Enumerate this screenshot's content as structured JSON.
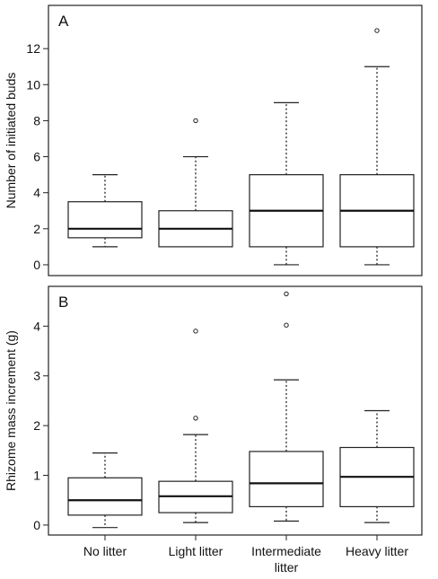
{
  "chart_data": [
    {
      "type": "box",
      "panel_label": "A",
      "ylabel": "Number of initiated buds",
      "ylim": [
        -0.6,
        14.4
      ],
      "yticks": [
        0,
        2,
        4,
        6,
        8,
        10,
        12
      ],
      "categories": [
        "No litter",
        "Light litter",
        "Intermediate litter",
        "Heavy litter"
      ],
      "boxes": [
        {
          "whisker_low": 1,
          "q1": 1.5,
          "median": 2,
          "q3": 3.5,
          "whisker_high": 5,
          "outliers": []
        },
        {
          "whisker_low": 1,
          "q1": 1,
          "median": 2,
          "q3": 3,
          "whisker_high": 6,
          "outliers": [
            8
          ]
        },
        {
          "whisker_low": 0,
          "q1": 1,
          "median": 3,
          "q3": 5,
          "whisker_high": 9,
          "outliers": []
        },
        {
          "whisker_low": 0,
          "q1": 1,
          "median": 3,
          "q3": 5,
          "whisker_high": 11,
          "outliers": [
            13
          ]
        }
      ]
    },
    {
      "type": "box",
      "panel_label": "B",
      "ylabel": "Rhizome mass increment (g)",
      "ylim": [
        -0.2,
        4.8
      ],
      "yticks": [
        0,
        1,
        2,
        3,
        4
      ],
      "categories": [
        "No litter",
        "Light litter",
        "Intermediate litter",
        "Heavy litter"
      ],
      "xticklabels": [
        [
          "No litter"
        ],
        [
          "Light litter"
        ],
        [
          "Intermediate",
          "litter"
        ],
        [
          "Heavy litter"
        ]
      ],
      "boxes": [
        {
          "whisker_low": -0.05,
          "q1": 0.2,
          "median": 0.5,
          "q3": 0.95,
          "whisker_high": 1.45,
          "outliers": []
        },
        {
          "whisker_low": 0.05,
          "q1": 0.25,
          "median": 0.58,
          "q3": 0.88,
          "whisker_high": 1.82,
          "outliers": [
            2.15,
            3.9
          ]
        },
        {
          "whisker_low": 0.08,
          "q1": 0.37,
          "median": 0.84,
          "q3": 1.48,
          "whisker_high": 2.92,
          "outliers": [
            4.02,
            4.65
          ]
        },
        {
          "whisker_low": 0.05,
          "q1": 0.37,
          "median": 0.97,
          "q3": 1.56,
          "whisker_high": 2.3,
          "outliers": []
        }
      ]
    }
  ]
}
